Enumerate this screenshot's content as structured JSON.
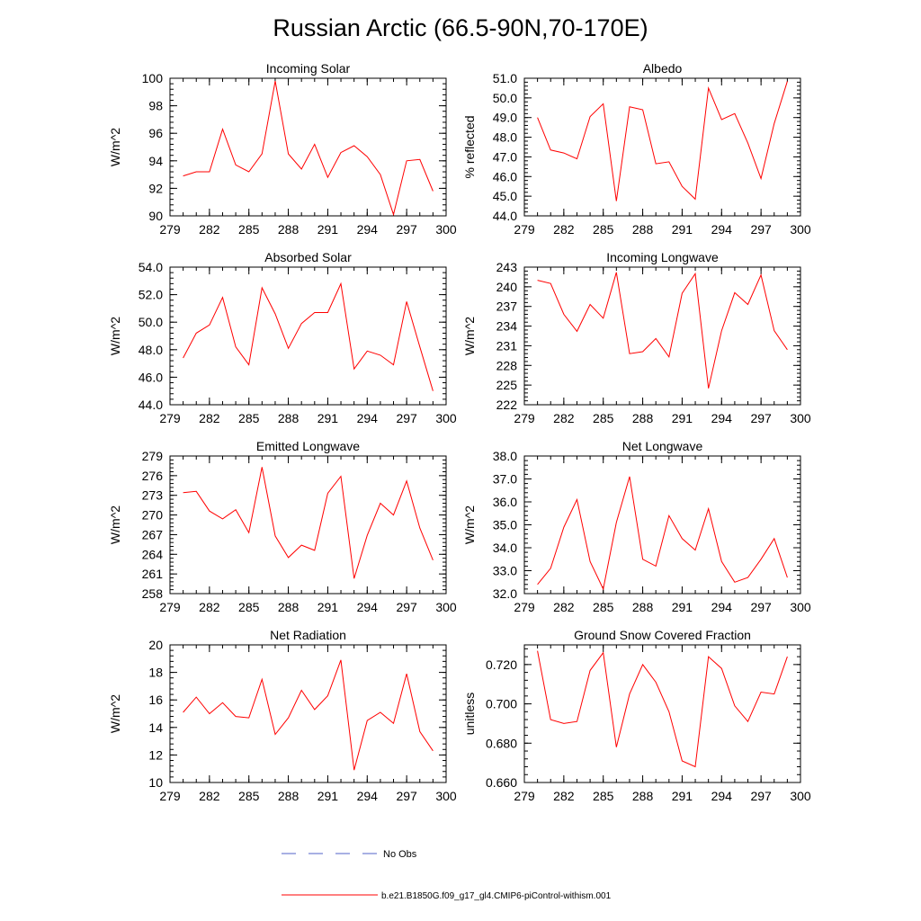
{
  "title": "Russian Arctic (66.5-90N,70-170E)",
  "colors": {
    "model_line": "#ff0000",
    "obs_line": "#5060c8",
    "axis": "#000000"
  },
  "legend": {
    "obs_label": "No Obs",
    "model_label": "b.e21.B1850G.f09_g17_gl4.CMIP6-piControl-withism.001"
  },
  "chart_data": [
    {
      "type": "line",
      "title": "Incoming Solar",
      "ylabel": "W/m^2",
      "xlim": [
        279,
        300
      ],
      "ylim": [
        90,
        100
      ],
      "xticks": [
        279,
        282,
        285,
        288,
        291,
        294,
        297,
        300
      ],
      "yticks": [
        90,
        92,
        94,
        96,
        98,
        100
      ],
      "ydecimals": 0,
      "x": [
        280,
        281,
        282,
        283,
        284,
        285,
        286,
        287,
        288,
        289,
        290,
        291,
        292,
        293,
        294,
        295,
        296,
        297,
        298,
        299
      ],
      "series": [
        {
          "name": "model",
          "values": [
            92.9,
            93.2,
            93.2,
            96.3,
            93.7,
            93.2,
            94.5,
            99.8,
            94.5,
            93.4,
            95.2,
            92.8,
            94.6,
            95.1,
            94.3,
            93.0,
            90.1,
            94.0,
            94.1,
            91.8
          ]
        }
      ]
    },
    {
      "type": "line",
      "title": "Albedo",
      "ylabel": "% reflected",
      "xlim": [
        279,
        300
      ],
      "ylim": [
        44.0,
        51.0
      ],
      "xticks": [
        279,
        282,
        285,
        288,
        291,
        294,
        297,
        300
      ],
      "yticks": [
        44.0,
        45.0,
        46.0,
        47.0,
        48.0,
        49.0,
        50.0,
        51.0
      ],
      "ydecimals": 1,
      "x": [
        280,
        281,
        282,
        283,
        284,
        285,
        286,
        287,
        288,
        289,
        290,
        291,
        292,
        293,
        294,
        295,
        296,
        297,
        298,
        299
      ],
      "series": [
        {
          "name": "model",
          "values": [
            49.0,
            47.35,
            47.2,
            46.9,
            49.05,
            49.7,
            44.75,
            49.55,
            49.4,
            46.65,
            46.75,
            45.5,
            44.85,
            50.5,
            48.9,
            49.2,
            47.7,
            45.9,
            48.7,
            50.85
          ]
        }
      ]
    },
    {
      "type": "line",
      "title": "Absorbed Solar",
      "ylabel": "W/m^2",
      "xlim": [
        279,
        300
      ],
      "ylim": [
        44.0,
        54.0
      ],
      "xticks": [
        279,
        282,
        285,
        288,
        291,
        294,
        297,
        300
      ],
      "yticks": [
        44.0,
        46.0,
        48.0,
        50.0,
        52.0,
        54.0
      ],
      "ydecimals": 1,
      "x": [
        280,
        281,
        282,
        283,
        284,
        285,
        286,
        287,
        288,
        289,
        290,
        291,
        292,
        293,
        294,
        295,
        296,
        297,
        298,
        299
      ],
      "series": [
        {
          "name": "model",
          "values": [
            47.4,
            49.2,
            49.8,
            51.8,
            48.2,
            46.9,
            52.5,
            50.6,
            48.1,
            49.9,
            50.7,
            50.7,
            52.8,
            46.6,
            47.9,
            47.6,
            46.9,
            51.5,
            48.2,
            45.0
          ]
        }
      ]
    },
    {
      "type": "line",
      "title": "Incoming Longwave",
      "ylabel": "W/m^2",
      "xlim": [
        279,
        300
      ],
      "ylim": [
        222,
        243
      ],
      "xticks": [
        279,
        282,
        285,
        288,
        291,
        294,
        297,
        300
      ],
      "yticks": [
        222,
        225,
        228,
        231,
        234,
        237,
        240,
        243
      ],
      "ydecimals": 0,
      "x": [
        280,
        281,
        282,
        283,
        284,
        285,
        286,
        287,
        288,
        289,
        290,
        291,
        292,
        293,
        294,
        295,
        296,
        297,
        298,
        299
      ],
      "series": [
        {
          "name": "model",
          "values": [
            241.0,
            240.5,
            235.8,
            233.2,
            237.3,
            235.2,
            242.2,
            229.8,
            230.1,
            232.1,
            229.3,
            239.0,
            242.0,
            224.5,
            233.3,
            239.1,
            237.3,
            241.8,
            233.3,
            230.4
          ]
        }
      ]
    },
    {
      "type": "line",
      "title": "Emitted Longwave",
      "ylabel": "W/m^2",
      "xlim": [
        279,
        300
      ],
      "ylim": [
        258,
        279
      ],
      "xticks": [
        279,
        282,
        285,
        288,
        291,
        294,
        297,
        300
      ],
      "yticks": [
        258,
        261,
        264,
        267,
        270,
        273,
        276,
        279
      ],
      "ydecimals": 0,
      "x": [
        280,
        281,
        282,
        283,
        284,
        285,
        286,
        287,
        288,
        289,
        290,
        291,
        292,
        293,
        294,
        295,
        296,
        297,
        298,
        299
      ],
      "series": [
        {
          "name": "model",
          "values": [
            273.4,
            273.6,
            270.6,
            269.4,
            270.8,
            267.3,
            277.3,
            266.8,
            263.5,
            265.4,
            264.6,
            273.3,
            275.9,
            260.3,
            266.9,
            271.8,
            270.0,
            275.2,
            268.0,
            263.1
          ]
        }
      ]
    },
    {
      "type": "line",
      "title": "Net Longwave",
      "ylabel": "W/m^2",
      "xlim": [
        279,
        300
      ],
      "ylim": [
        32.0,
        38.0
      ],
      "xticks": [
        279,
        282,
        285,
        288,
        291,
        294,
        297,
        300
      ],
      "yticks": [
        32.0,
        33.0,
        34.0,
        35.0,
        36.0,
        37.0,
        38.0
      ],
      "ydecimals": 1,
      "x": [
        280,
        281,
        282,
        283,
        284,
        285,
        286,
        287,
        288,
        289,
        290,
        291,
        292,
        293,
        294,
        295,
        296,
        297,
        298,
        299
      ],
      "series": [
        {
          "name": "model",
          "values": [
            32.4,
            33.1,
            34.9,
            36.1,
            33.4,
            32.2,
            35.1,
            37.1,
            33.5,
            33.2,
            35.4,
            34.4,
            33.9,
            35.7,
            33.4,
            32.5,
            32.7,
            33.5,
            34.4,
            32.7
          ]
        }
      ]
    },
    {
      "type": "line",
      "title": "Net Radiation",
      "ylabel": "W/m^2",
      "xlim": [
        279,
        300
      ],
      "ylim": [
        10,
        20
      ],
      "xticks": [
        279,
        282,
        285,
        288,
        291,
        294,
        297,
        300
      ],
      "yticks": [
        10,
        12,
        14,
        16,
        18,
        20
      ],
      "ydecimals": 0,
      "x": [
        280,
        281,
        282,
        283,
        284,
        285,
        286,
        287,
        288,
        289,
        290,
        291,
        292,
        293,
        294,
        295,
        296,
        297,
        298,
        299
      ],
      "series": [
        {
          "name": "model",
          "values": [
            15.1,
            16.2,
            15.0,
            15.8,
            14.8,
            14.7,
            17.5,
            13.5,
            14.7,
            16.7,
            15.3,
            16.3,
            18.9,
            10.9,
            14.5,
            15.1,
            14.3,
            17.9,
            13.7,
            12.3
          ]
        }
      ]
    },
    {
      "type": "line",
      "title": "Ground Snow Covered Fraction",
      "ylabel": "unitless",
      "xlim": [
        279,
        300
      ],
      "ylim": [
        0.66,
        0.73
      ],
      "xticks": [
        279,
        282,
        285,
        288,
        291,
        294,
        297,
        300
      ],
      "yticks": [
        0.66,
        0.68,
        0.7,
        0.72
      ],
      "ydecimals": 3,
      "x": [
        280,
        281,
        282,
        283,
        284,
        285,
        286,
        287,
        288,
        289,
        290,
        291,
        292,
        293,
        294,
        295,
        296,
        297,
        298,
        299
      ],
      "series": [
        {
          "name": "model",
          "values": [
            0.727,
            0.692,
            0.69,
            0.691,
            0.717,
            0.726,
            0.678,
            0.705,
            0.72,
            0.711,
            0.696,
            0.671,
            0.668,
            0.724,
            0.718,
            0.699,
            0.691,
            0.706,
            0.705,
            0.724
          ]
        }
      ]
    }
  ]
}
